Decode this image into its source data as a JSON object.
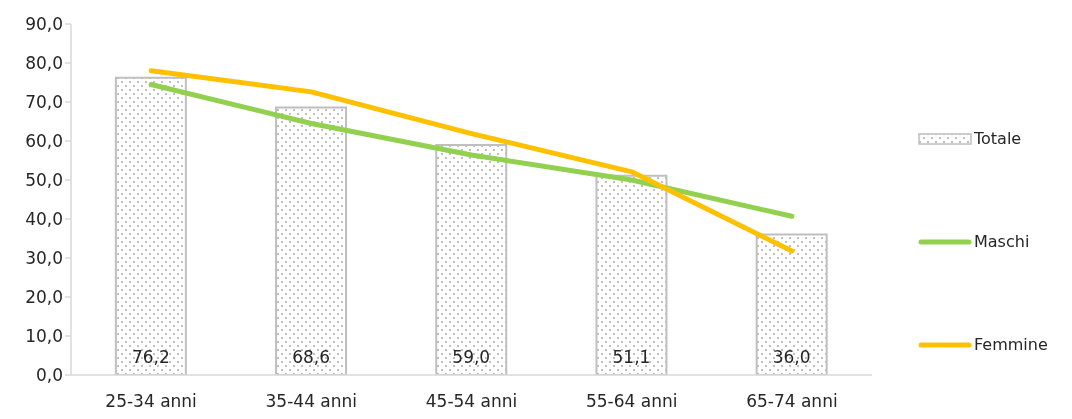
{
  "chart_data": {
    "type": "bar",
    "categories": [
      "25-34 anni",
      "35-44 anni",
      "45-54 anni",
      "55-64 anni",
      "65-74 anni"
    ],
    "series": [
      {
        "name": "Totale",
        "color": "#bfbfbf",
        "values": [
          76.2,
          68.6,
          59.0,
          51.1,
          36.0
        ],
        "value_labels": [
          "76,2",
          "68,6",
          "59,0",
          "51,1",
          "36,0"
        ]
      },
      {
        "name": "Maschi",
        "type": "line",
        "color": "#92d050",
        "values": [
          74.5,
          64.5,
          56.4,
          50.0,
          40.7
        ]
      },
      {
        "name": "Femmine",
        "type": "line",
        "color": "#ffc000",
        "values": [
          78.0,
          72.6,
          61.9,
          52.1,
          31.8
        ]
      }
    ],
    "ylim": [
      0,
      90
    ],
    "yticks": [
      {
        "value": 0,
        "label": "0,0"
      },
      {
        "value": 10,
        "label": "10,0"
      },
      {
        "value": 20,
        "label": "20,0"
      },
      {
        "value": 30,
        "label": "30,0"
      },
      {
        "value": 40,
        "label": "40,0"
      },
      {
        "value": 50,
        "label": "50,0"
      },
      {
        "value": 60,
        "label": "60,0"
      },
      {
        "value": 70,
        "label": "70,0"
      },
      {
        "value": 80,
        "label": "80,0"
      },
      {
        "value": 90,
        "label": "90,0"
      }
    ],
    "legend": "right",
    "marker": "none",
    "line_style": "solid"
  }
}
